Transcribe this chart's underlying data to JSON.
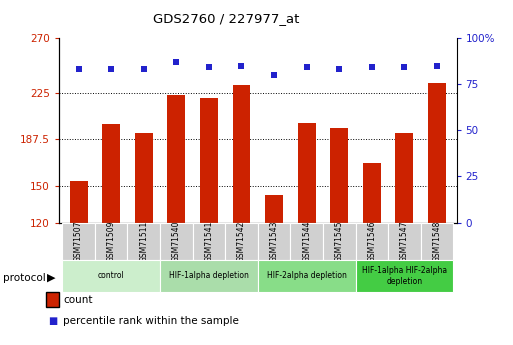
{
  "title": "GDS2760 / 227977_at",
  "samples": [
    "GSM71507",
    "GSM71509",
    "GSM71511",
    "GSM71540",
    "GSM71541",
    "GSM71542",
    "GSM71543",
    "GSM71544",
    "GSM71545",
    "GSM71546",
    "GSM71547",
    "GSM71548"
  ],
  "counts": [
    154,
    200,
    193,
    224,
    221,
    232,
    142,
    201,
    197,
    168,
    193,
    233
  ],
  "percentile_ranks": [
    83,
    83,
    83,
    87,
    84,
    85,
    80,
    84,
    83,
    84,
    84,
    85
  ],
  "ylim_left": [
    120,
    270
  ],
  "ylim_right": [
    0,
    100
  ],
  "yticks_left": [
    120,
    150,
    187.5,
    225,
    270
  ],
  "ytick_labels_left": [
    "120",
    "150",
    "187.5",
    "225",
    "270"
  ],
  "yticks_right": [
    0,
    25,
    50,
    75,
    100
  ],
  "ytick_labels_right": [
    "0",
    "25",
    "50",
    "75",
    "100%"
  ],
  "bar_color": "#cc2200",
  "dot_color": "#2222cc",
  "groups": [
    {
      "label": "control",
      "start": 0,
      "end": 3,
      "color": "#cceecc"
    },
    {
      "label": "HIF-1alpha depletion",
      "start": 3,
      "end": 6,
      "color": "#aaddaa"
    },
    {
      "label": "HIF-2alpha depletion",
      "start": 6,
      "end": 9,
      "color": "#88dd88"
    },
    {
      "label": "HIF-1alpha HIF-2alpha\ndepletion",
      "start": 9,
      "end": 12,
      "color": "#44cc44"
    }
  ],
  "tick_label_color_left": "#cc2200",
  "tick_label_color_right": "#2222cc",
  "legend_count_color": "#cc2200",
  "legend_dot_color": "#2222cc",
  "sample_box_color": "#d0d0d0",
  "gridline_color": "#000000"
}
